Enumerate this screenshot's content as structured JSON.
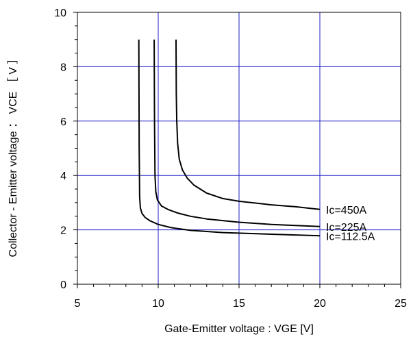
{
  "chart_data": {
    "type": "line",
    "title": "",
    "xlabel": "Gate-Emitter voltage : VGE [V]",
    "ylabel": "Collector - Emitter voltage ： VCE ［ V ］",
    "xlim": [
      5,
      25
    ],
    "ylim": [
      0,
      10
    ],
    "xticks": [
      5,
      10,
      15,
      20,
      25
    ],
    "yticks": [
      0,
      2,
      4,
      6,
      8,
      10
    ],
    "xtick_labels": [
      "5",
      "10",
      "15",
      "20",
      "25"
    ],
    "ytick_labels": [
      "0",
      "2",
      "4",
      "6",
      "8",
      "10"
    ],
    "grid": true,
    "series": [
      {
        "name": "Ic=450A",
        "x": [
          11.1,
          11.12,
          11.15,
          11.2,
          11.3,
          11.5,
          11.8,
          12.2,
          13,
          14,
          15,
          17,
          18.5,
          20
        ],
        "y": [
          9.0,
          7.0,
          6.0,
          5.2,
          4.6,
          4.2,
          3.9,
          3.65,
          3.35,
          3.15,
          3.05,
          2.92,
          2.85,
          2.75
        ]
      },
      {
        "name": "Ic=225A",
        "x": [
          9.75,
          9.77,
          9.8,
          9.85,
          9.95,
          10.2,
          10.6,
          11.2,
          12,
          13,
          15,
          17,
          20
        ],
        "y": [
          9.0,
          6.0,
          4.0,
          3.4,
          3.1,
          2.88,
          2.75,
          2.62,
          2.5,
          2.4,
          2.28,
          2.2,
          2.12
        ]
      },
      {
        "name": "Ic=112.5A",
        "x": [
          8.8,
          8.82,
          8.85,
          8.9,
          9.0,
          9.2,
          9.5,
          10,
          10.8,
          12,
          14,
          17,
          20
        ],
        "y": [
          9.0,
          5.0,
          3.2,
          2.8,
          2.6,
          2.45,
          2.33,
          2.2,
          2.08,
          1.98,
          1.9,
          1.84,
          1.78
        ]
      }
    ]
  }
}
